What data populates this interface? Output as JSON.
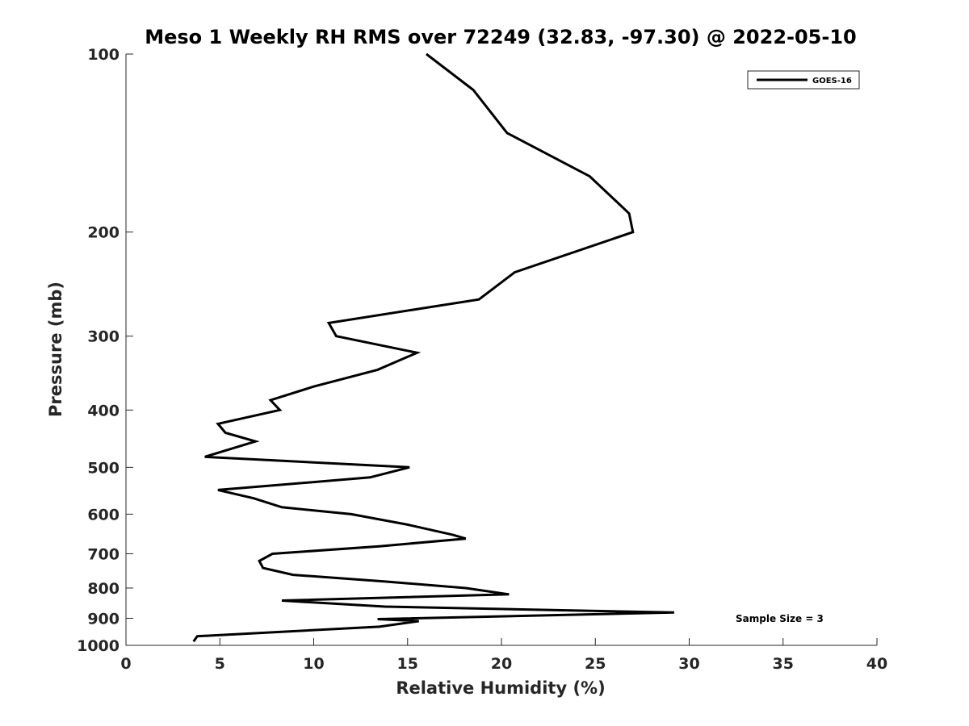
{
  "chart_data": {
    "type": "line",
    "title": "Meso 1 Weekly RH RMS over 72249 (32.83, -97.30) @ 2022-05-10",
    "xlabel": "Relative Humidity (%)",
    "ylabel": "Pressure (mb)",
    "xlim": [
      0,
      40
    ],
    "ylim": [
      1000,
      100
    ],
    "yscale": "log",
    "grid": false,
    "legend_position": "top-right",
    "x_ticks": [
      0,
      5,
      10,
      15,
      20,
      25,
      30,
      35,
      40
    ],
    "x_tick_labels": [
      "0",
      "5",
      "10",
      "15",
      "20",
      "25",
      "30",
      "35",
      "40"
    ],
    "y_ticks": [
      100,
      200,
      300,
      400,
      500,
      600,
      700,
      800,
      900,
      1000
    ],
    "y_tick_labels": [
      "100",
      "200",
      "300",
      "400",
      "500",
      "600",
      "700",
      "800",
      "900",
      "1000"
    ],
    "series": [
      {
        "name": "GOES-16",
        "color": "#000000",
        "x": [
          16.0,
          18.5,
          20.3,
          24.7,
          26.8,
          27.0,
          20.7,
          18.8,
          10.8,
          11.2,
          15.5,
          13.4,
          10.0,
          7.7,
          8.2,
          4.9,
          5.3,
          6.9,
          4.2,
          15.1,
          13.0,
          4.9,
          6.8,
          8.3,
          12.0,
          15.0,
          17.4,
          18.1,
          13.5,
          7.8,
          7.1,
          7.3,
          8.9,
          13.8,
          18.1,
          20.4,
          8.3,
          13.8,
          29.2,
          13.4,
          15.6,
          13.5,
          3.8,
          3.6
        ],
        "y": [
          100,
          115,
          136,
          161,
          186,
          200,
          234,
          260,
          285,
          300,
          320,
          342,
          365,
          385,
          400,
          422,
          437,
          452,
          480,
          500,
          520,
          546,
          564,
          584,
          600,
          625,
          650,
          660,
          680,
          700,
          720,
          740,
          760,
          780,
          800,
          820,
          840,
          860,
          880,
          903,
          910,
          930,
          965,
          985
        ]
      }
    ],
    "annotation": "Sample Size = 3"
  }
}
